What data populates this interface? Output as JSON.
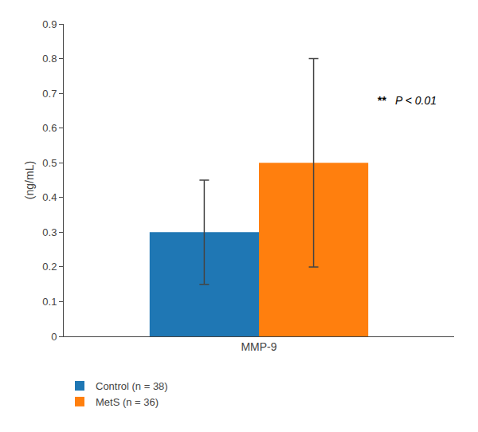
{
  "chart_data": {
    "type": "bar",
    "categories": [
      "MMP-9"
    ],
    "ylabel": "(ng/mL)",
    "series": [
      {
        "name": "Control (n = 38)",
        "values": [
          0.3
        ],
        "errors": [
          0.15
        ]
      },
      {
        "name": "MetS (n = 36)",
        "values": [
          0.5
        ],
        "errors": [
          0.3
        ]
      }
    ],
    "ylim": [
      0,
      0.9
    ],
    "yticks": [
      0,
      0.1,
      0.2,
      0.3,
      0.4,
      0.5,
      0.6,
      0.7,
      0.8,
      0.9
    ],
    "grid": false,
    "legend": "bottom left",
    "annotations": [
      {
        "text": "**",
        "y": 0.68
      },
      {
        "text": "P < 0.01",
        "y": 0.68
      }
    ]
  }
}
